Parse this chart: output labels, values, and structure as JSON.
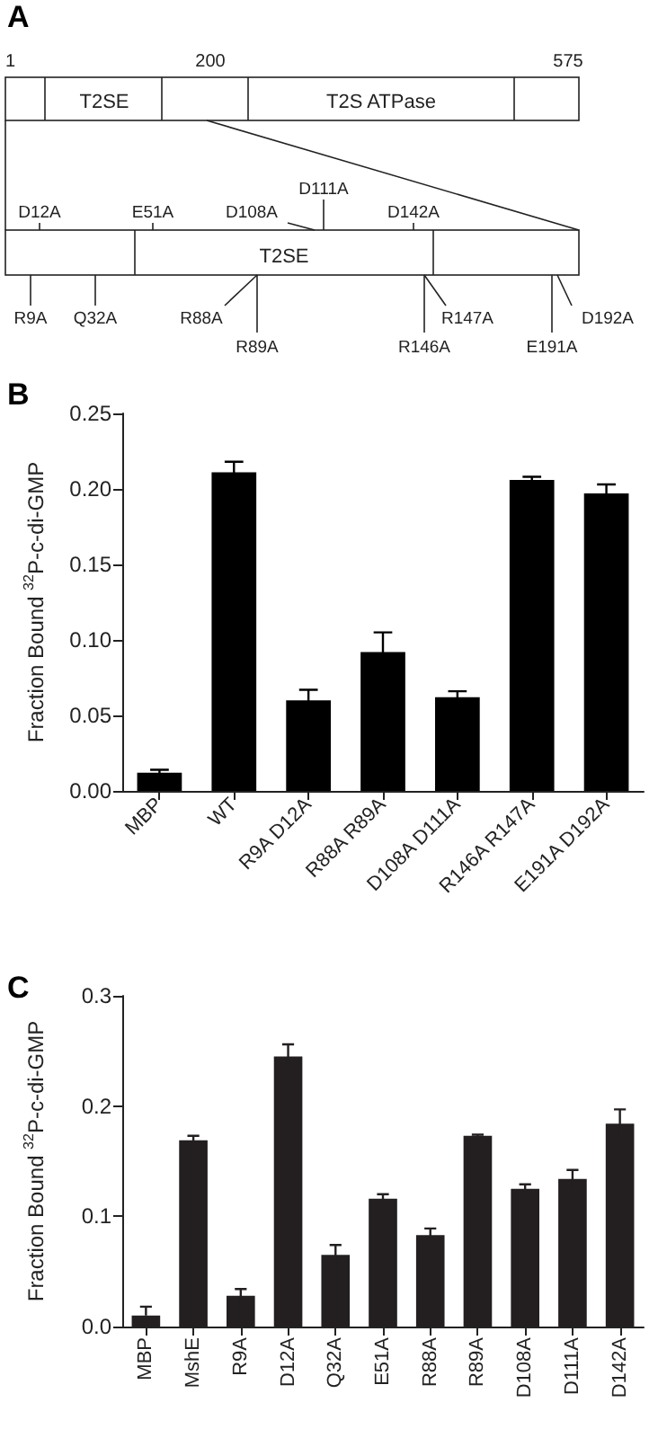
{
  "chart_data": [
    {
      "type": "other",
      "title": "A",
      "annotations": [
        "1",
        "200",
        "575",
        "T2SE",
        "T2S ATPase",
        "T2SE",
        "D12A",
        "E51A",
        "D108A",
        "D111A",
        "D142A",
        "R9A",
        "Q32A",
        "R88A",
        "R89A",
        "R146A",
        "R147A",
        "E191A",
        "D192A"
      ]
    },
    {
      "type": "bar",
      "title": "B",
      "ylabel": "Fraction Bound $^{32}$P-c-di-GMP",
      "categories": [
        "MBP",
        "WT",
        "R9A D12A",
        "R88A R89A",
        "D108A D111A",
        "R146A R147A",
        "E191A D192A"
      ],
      "values": [
        0.012,
        0.211,
        0.06,
        0.092,
        0.062,
        0.206,
        0.197
      ],
      "errors": [
        0.002,
        0.007,
        0.007,
        0.013,
        0.004,
        0.002,
        0.006
      ],
      "color": "#000000",
      "ylim": [
        0,
        0.25
      ],
      "yticks": [
        {
          "value": 0,
          "label": "0.00"
        },
        0.05,
        {
          "value": 0.1,
          "label": "0.10"
        },
        0.15,
        {
          "value": 0.2,
          "label": "0.20"
        },
        0.25
      ],
      "grid": false
    },
    {
      "type": "bar",
      "title": "C",
      "ylabel": "Fraction Bound $^{32}$P-c-di-GMP",
      "categories": [
        "MBP",
        "MshE",
        "R9A",
        "D12A",
        "Q32A",
        "E51A",
        "R88A",
        "R89A",
        "D108A",
        "D111A",
        "D142A"
      ],
      "values": [
        0.01,
        0.169,
        0.028,
        0.245,
        0.065,
        0.116,
        0.083,
        0.173,
        0.125,
        0.134,
        0.184
      ],
      "errors": [
        [
          0.01,
          0.018
        ],
        0.004,
        0.006,
        0.011,
        0.009,
        0.004,
        0.006,
        0.001,
        0.004,
        0.008,
        0.013
      ],
      "color": "#231f20",
      "ylim": [
        0,
        0.3
      ],
      "yticks": [
        {
          "value": 0,
          "label": "0.0"
        },
        0.1,
        0.2,
        0.3
      ],
      "grid": false
    }
  ]
}
